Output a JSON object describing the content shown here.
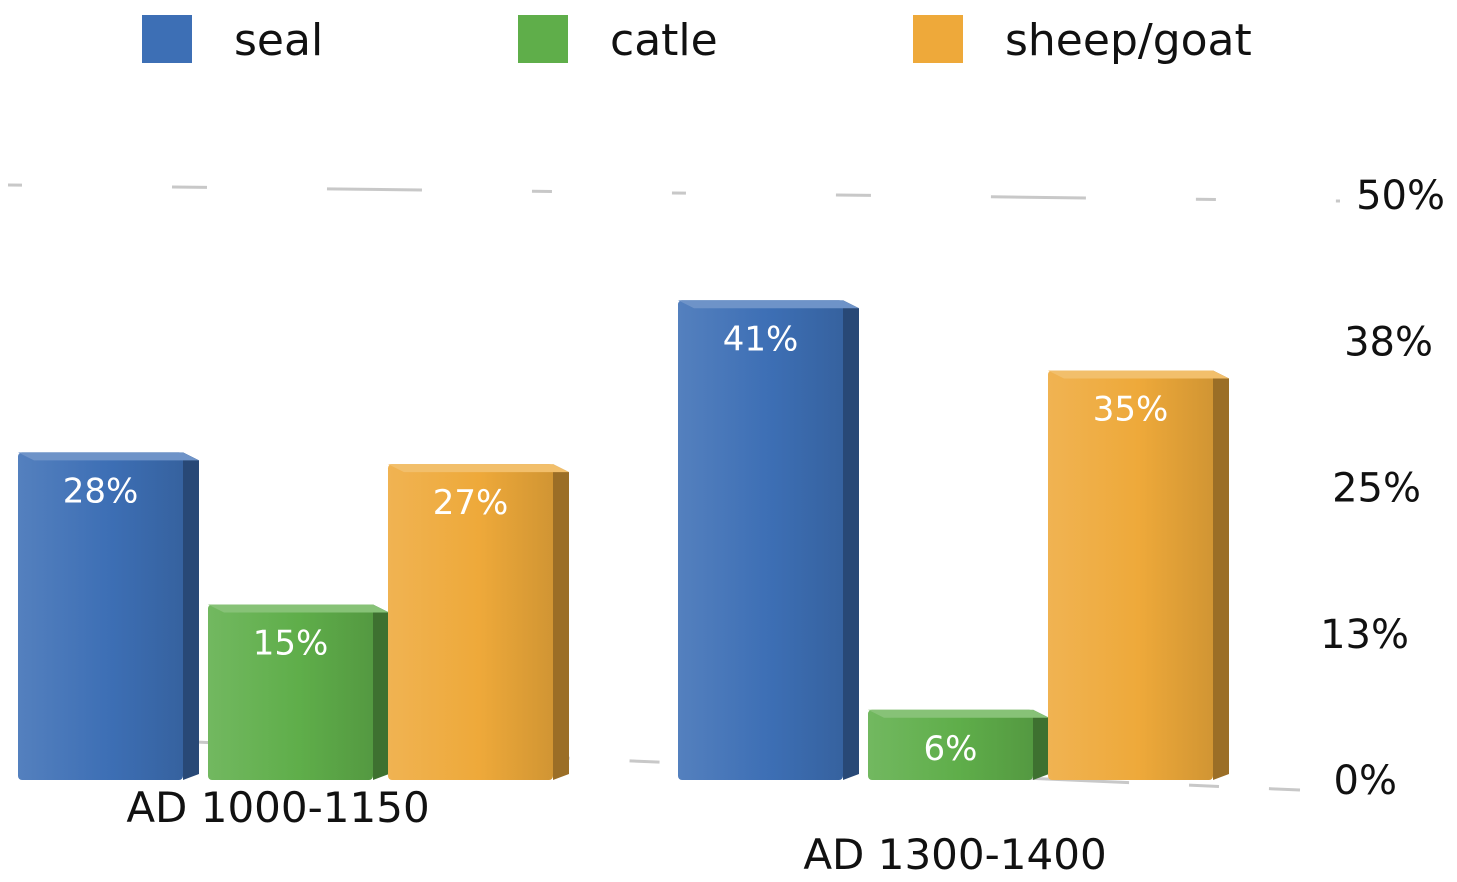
{
  "chart_data": {
    "type": "bar",
    "style": "3d",
    "categories": [
      "AD 1000-1150",
      "AD 1300-1400"
    ],
    "series": [
      {
        "name": "seal",
        "values": [
          28,
          41
        ],
        "labels": [
          "28%",
          "41%"
        ],
        "color": "#3d6fb5"
      },
      {
        "name": "catle",
        "values": [
          15,
          6
        ],
        "labels": [
          "15%",
          "6%"
        ],
        "color": "#5fae4a"
      },
      {
        "name": "sheep/goat",
        "values": [
          27,
          35
        ],
        "labels": [
          "27%",
          "35%"
        ],
        "color": "#eea93a"
      }
    ],
    "yaxis": {
      "ticks": [
        0,
        12.5,
        25,
        37.5,
        50
      ],
      "tick_labels": [
        "0%",
        "13%",
        "25%",
        "38%",
        "50%"
      ],
      "side": "right",
      "ylim": [
        0,
        50
      ]
    },
    "legend": {
      "placement": "top"
    },
    "grid": true
  }
}
